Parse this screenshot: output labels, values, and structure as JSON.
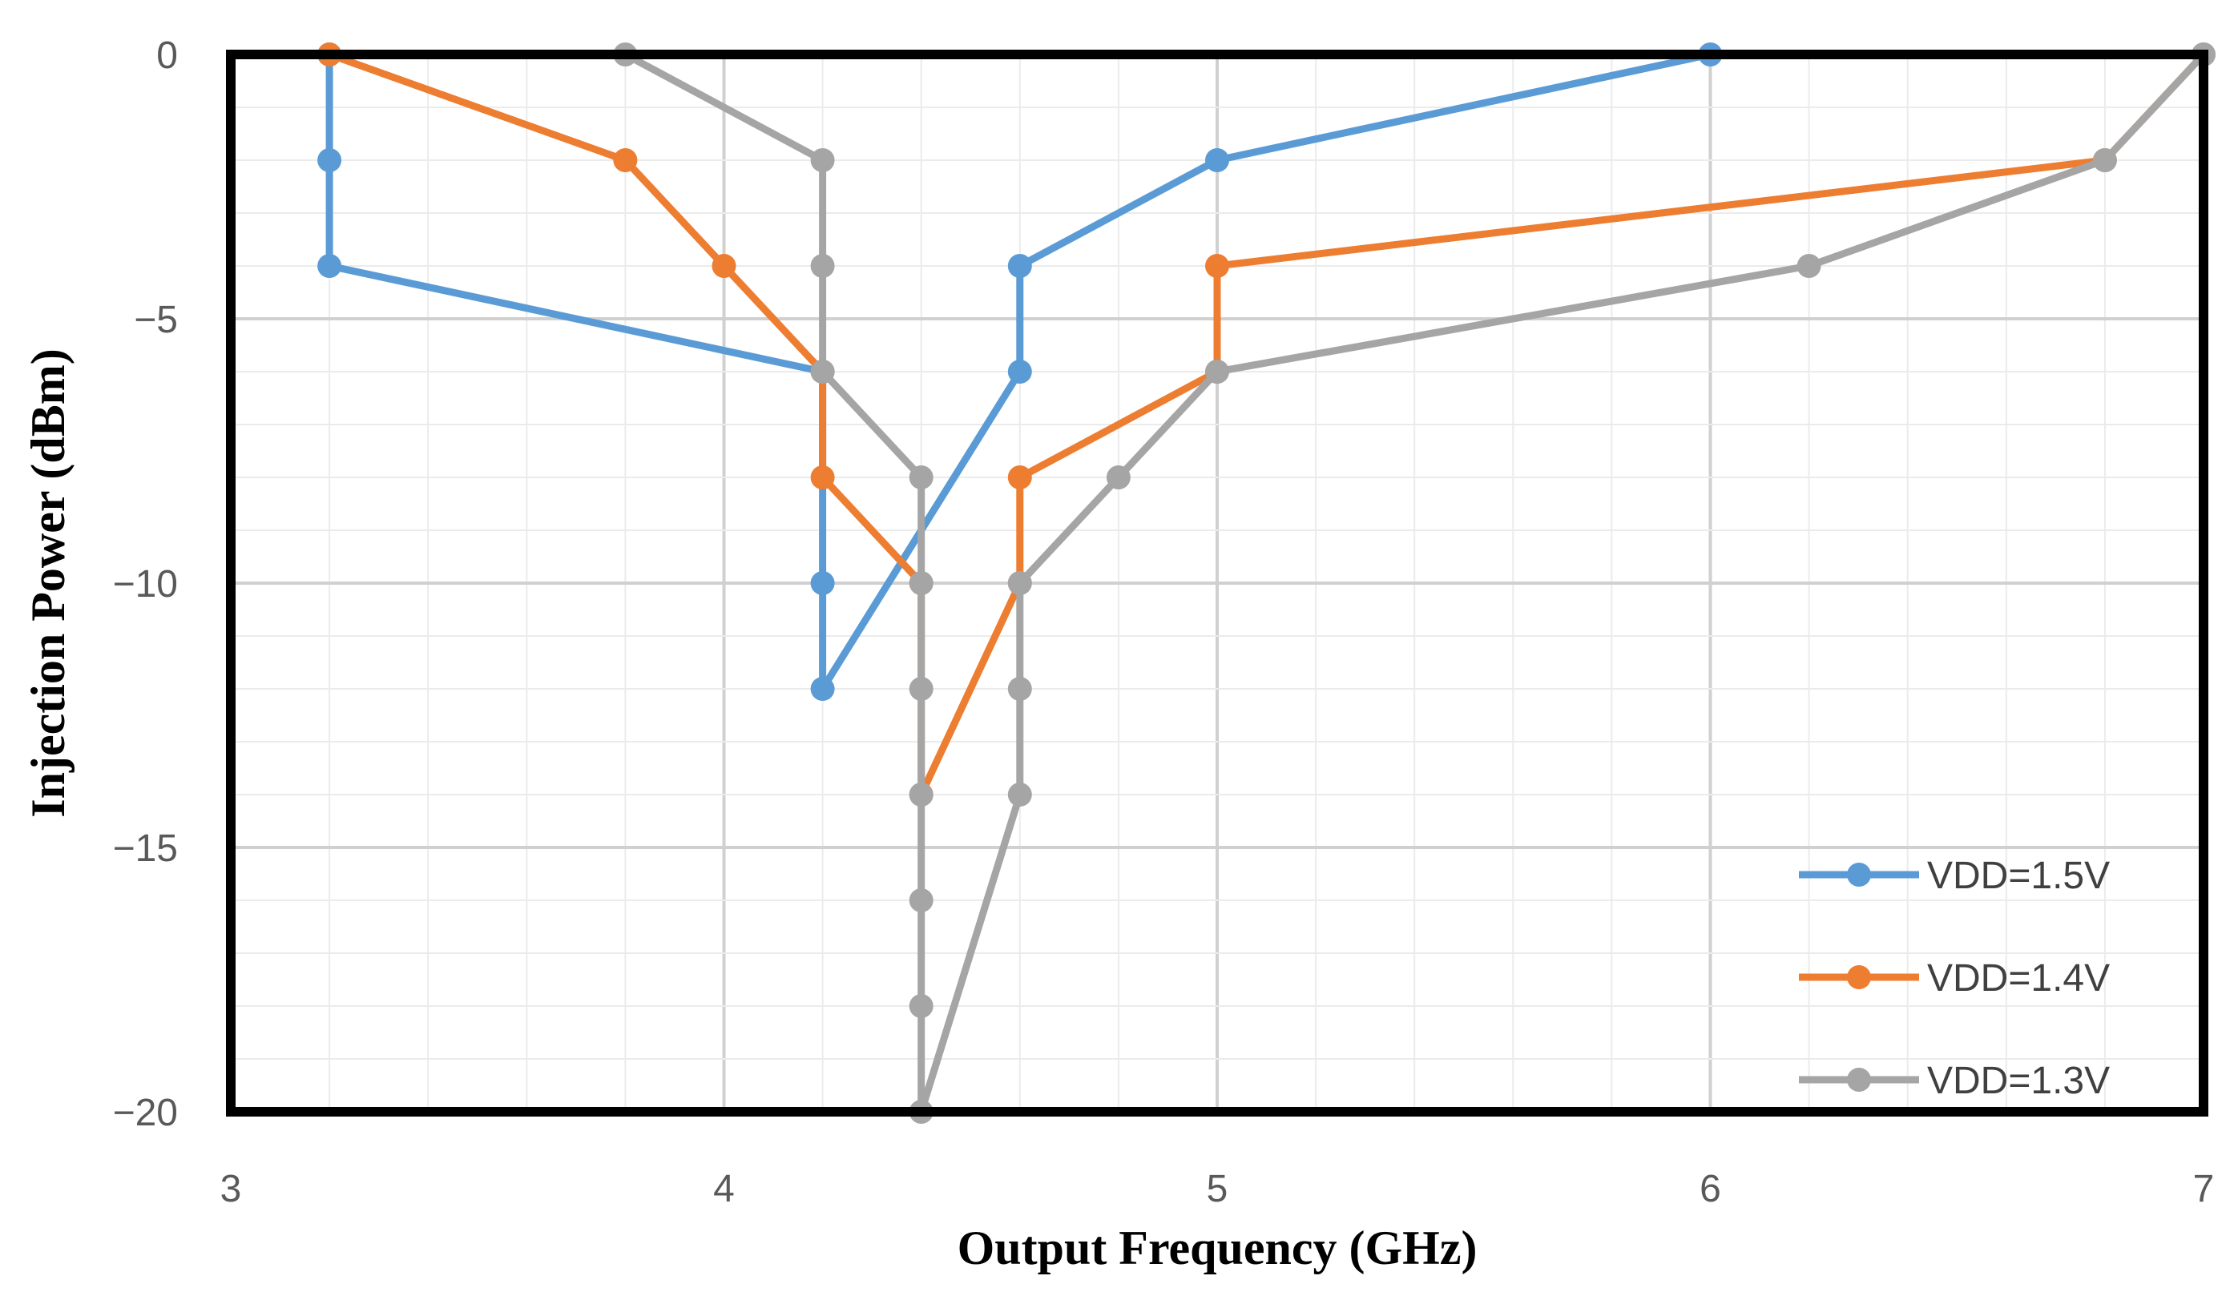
{
  "chart_data": {
    "type": "line",
    "title": "",
    "xlabel": "Output Frequency (GHz)",
    "ylabel": "Injection Power (dBm)",
    "xlim": [
      3,
      7
    ],
    "ylim": [
      -20,
      0
    ],
    "xticks": [
      "3",
      "4",
      "5",
      "6",
      "7"
    ],
    "yticks": [
      "0",
      "−5",
      "−10",
      "−15",
      "−20"
    ],
    "grid": true,
    "legend_position": "bottom-right",
    "series": [
      {
        "name": "VDD=1.5V",
        "color": "#5B9BD5",
        "points": [
          [
            3.2,
            0
          ],
          [
            3.2,
            -2
          ],
          [
            3.2,
            -4
          ],
          [
            4.2,
            -6
          ],
          [
            4.2,
            -10
          ],
          [
            4.2,
            -12
          ],
          [
            4.6,
            -6
          ],
          [
            4.6,
            -4
          ],
          [
            5.0,
            -2
          ],
          [
            6.0,
            0
          ]
        ]
      },
      {
        "name": "VDD=1.4V",
        "color": "#ED7D31",
        "points": [
          [
            3.2,
            0
          ],
          [
            3.8,
            -2
          ],
          [
            4.0,
            -4
          ],
          [
            4.2,
            -6
          ],
          [
            4.2,
            -8
          ],
          [
            4.4,
            -10
          ],
          [
            4.4,
            -14
          ],
          [
            4.6,
            -10
          ],
          [
            4.6,
            -8
          ],
          [
            5.0,
            -6
          ],
          [
            5.0,
            -4
          ],
          [
            6.8,
            -2
          ],
          [
            7.0,
            0
          ]
        ]
      },
      {
        "name": "VDD=1.3V",
        "color": "#A5A5A5",
        "points": [
          [
            3.8,
            0
          ],
          [
            4.2,
            -2
          ],
          [
            4.2,
            -4
          ],
          [
            4.2,
            -6
          ],
          [
            4.4,
            -8
          ],
          [
            4.4,
            -10
          ],
          [
            4.4,
            -12
          ],
          [
            4.4,
            -14
          ],
          [
            4.4,
            -16
          ],
          [
            4.4,
            -18
          ],
          [
            4.4,
            -20
          ],
          [
            4.6,
            -14
          ],
          [
            4.6,
            -12
          ],
          [
            4.6,
            -10
          ],
          [
            4.8,
            -8
          ],
          [
            5.0,
            -6
          ],
          [
            6.2,
            -4
          ],
          [
            6.8,
            -2
          ],
          [
            7.0,
            0
          ]
        ]
      }
    ]
  }
}
